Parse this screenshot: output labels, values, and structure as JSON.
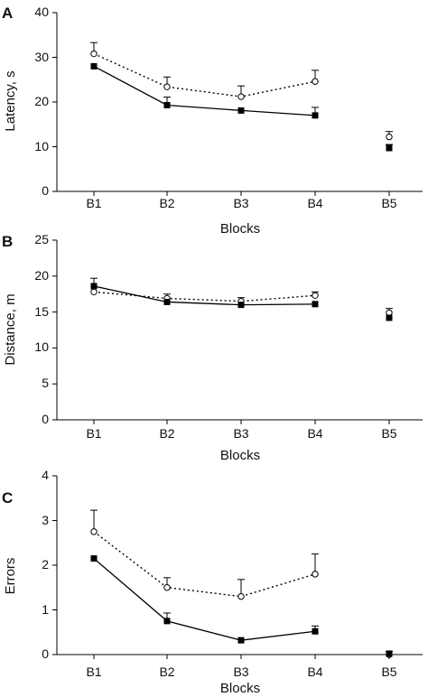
{
  "chart_data": [
    {
      "type": "line",
      "panel": "A",
      "categories": [
        "B1",
        "B2",
        "B3",
        "B4",
        "B5"
      ],
      "ylim": [
        0,
        40
      ],
      "yticks": [
        0,
        10,
        20,
        30,
        40
      ],
      "xlabel": "Blocks",
      "ylabel": "Latency, s",
      "grid": false,
      "series": [
        {
          "style": "solid",
          "marker": "filled-square",
          "values": [
            28,
            19.3,
            18.1,
            17,
            9.7
          ],
          "errors": [
            0,
            1.8,
            0,
            1.8,
            0.8
          ],
          "connected": [
            true,
            true,
            true,
            true,
            false
          ]
        },
        {
          "style": "dotted",
          "marker": "open-circle",
          "values": [
            30.8,
            23.4,
            21.2,
            24.6,
            12.2
          ],
          "errors": [
            2.5,
            2.2,
            2.4,
            2.5,
            1.2
          ],
          "connected": [
            true,
            true,
            true,
            true,
            false
          ]
        }
      ]
    },
    {
      "type": "line",
      "panel": "B",
      "categories": [
        "B1",
        "B2",
        "B3",
        "B4",
        "B5"
      ],
      "ylim": [
        0,
        25
      ],
      "yticks": [
        0,
        5,
        10,
        15,
        20,
        25
      ],
      "xlabel": "Blocks",
      "ylabel": "Distance, m",
      "grid": false,
      "series": [
        {
          "style": "solid",
          "marker": "filled-square",
          "values": [
            18.6,
            16.4,
            16,
            16.1,
            14.2
          ],
          "errors": [
            1.1,
            0,
            0,
            0,
            0
          ],
          "connected": [
            true,
            true,
            true,
            true,
            false
          ]
        },
        {
          "style": "dotted",
          "marker": "open-circle",
          "values": [
            17.8,
            16.9,
            16.5,
            17.3,
            14.9
          ],
          "errors": [
            0,
            0.6,
            0.5,
            0.5,
            0.6
          ],
          "connected": [
            true,
            true,
            true,
            true,
            false
          ]
        }
      ]
    },
    {
      "type": "line",
      "panel": "C",
      "categories": [
        "B1",
        "B2",
        "B3",
        "B4",
        "B5"
      ],
      "ylim": [
        0,
        4
      ],
      "yticks": [
        0,
        1,
        2,
        3,
        4
      ],
      "xlabel": "Blocks",
      "ylabel": "Errors",
      "grid": false,
      "series": [
        {
          "style": "solid",
          "marker": "filled-square",
          "values": [
            2.15,
            0.75,
            0.32,
            0.52,
            0.02
          ],
          "errors": [
            0,
            0.18,
            0,
            0.12,
            0.05
          ],
          "connected": [
            true,
            true,
            true,
            true,
            false
          ]
        },
        {
          "style": "dotted",
          "marker": "open-circle",
          "values": [
            2.75,
            1.5,
            1.3,
            1.8,
            0
          ],
          "errors": [
            0.48,
            0.22,
            0.38,
            0.45,
            0
          ],
          "connected": [
            true,
            true,
            true,
            true,
            false
          ]
        }
      ]
    }
  ]
}
